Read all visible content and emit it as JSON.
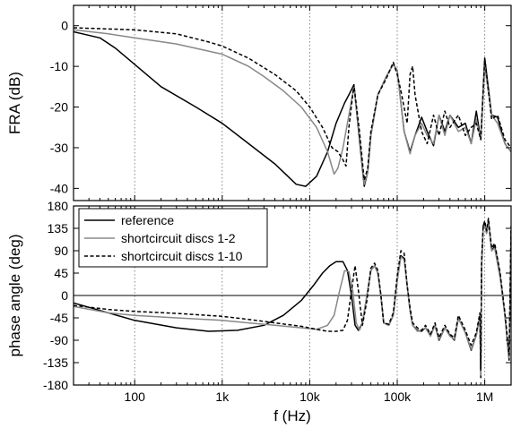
{
  "chart_data": [
    {
      "type": "line",
      "title": "",
      "ylabel": "FRA (dB)",
      "xlabel": "",
      "xscale": "log",
      "xlim": [
        20,
        2000000
      ],
      "ylim": [
        -43,
        5
      ],
      "xticks": [
        100,
        1000,
        10000,
        100000,
        1000000
      ],
      "yticks": [
        0,
        -10,
        -20,
        -30,
        -40
      ],
      "yticklabels": [
        "0",
        "-10",
        "-20",
        "-30",
        "-40"
      ],
      "vgrid": "dotted at decades",
      "series": [
        {
          "name": "reference",
          "color": "#000000",
          "dash": "solid",
          "x": [
            20,
            40,
            60,
            100,
            200,
            500,
            1000,
            2000,
            4000,
            7000,
            9000,
            12000,
            16000,
            20000,
            25000,
            28000,
            32000,
            37000,
            42000,
            46000,
            50000,
            60000,
            75000,
            90000,
            100000,
            120000,
            140000,
            160000,
            190000,
            220000,
            260000,
            300000,
            350000,
            400000,
            500000,
            600000,
            700000,
            800000,
            900000,
            1000000,
            1200000,
            1400000,
            1700000,
            2000000
          ],
          "y": [
            -1.5,
            -3,
            -5.5,
            -9.5,
            -15,
            -20,
            -24,
            -29,
            -34,
            -39,
            -39.5,
            -37,
            -31,
            -24,
            -19,
            -17,
            -14.5,
            -28,
            -39.5,
            -36,
            -27,
            -17,
            -12.5,
            -9.5,
            -11,
            -26,
            -31,
            -27,
            -22.5,
            -26,
            -29.5,
            -22,
            -26,
            -22,
            -25,
            -24,
            -29,
            -21,
            -28,
            -8,
            -22,
            -22.5,
            -29,
            -31
          ]
        },
        {
          "name": "shortcircuit discs 1-2",
          "color": "#888888",
          "dash": "solid",
          "x": [
            20,
            50,
            100,
            300,
            1000,
            2000,
            3000,
            5000,
            8000,
            12000,
            16000,
            19000,
            21000,
            24000,
            28000,
            32000,
            37000,
            42000,
            46000,
            50000,
            60000,
            75000,
            90000,
            100000,
            120000,
            140000,
            160000,
            190000,
            220000,
            260000,
            300000,
            350000,
            400000,
            500000,
            600000,
            700000,
            800000,
            900000,
            1000000,
            1200000,
            1400000,
            1700000,
            2000000
          ],
          "y": [
            -1,
            -2,
            -3,
            -4.5,
            -7,
            -10,
            -12.5,
            -16,
            -20,
            -25,
            -31,
            -36.5,
            -35,
            -30,
            -22,
            -15,
            -27,
            -39,
            -36,
            -27,
            -17,
            -12.5,
            -9.5,
            -11,
            -26,
            -31.5,
            -27,
            -24,
            -27,
            -29,
            -22,
            -27,
            -22,
            -26,
            -25,
            -29,
            -23,
            -28,
            -10,
            -22,
            -24,
            -29,
            -31
          ]
        },
        {
          "name": "shortcircuit discs 1-10",
          "color": "#000000",
          "dash": "dashed",
          "x": [
            20,
            100,
            300,
            700,
            1000,
            2000,
            4000,
            7000,
            10000,
            14000,
            18000,
            21000,
            24000,
            26000,
            28000,
            32000,
            37000,
            42000,
            46000,
            50000,
            60000,
            75000,
            90000,
            100000,
            110000,
            130000,
            140000,
            150000,
            160000,
            190000,
            220000,
            260000,
            300000,
            350000,
            400000,
            500000,
            600000,
            700000,
            800000,
            900000,
            1000000,
            1200000,
            1400000,
            1700000,
            2000000
          ],
          "y": [
            -0.5,
            -1,
            -2,
            -4,
            -5,
            -8,
            -12,
            -16,
            -20,
            -25,
            -30,
            -31,
            -33,
            -34.5,
            -25,
            -14.5,
            -26,
            -38,
            -35,
            -26,
            -17,
            -13,
            -9,
            -12,
            -16,
            -24,
            -12,
            -10,
            -17,
            -26,
            -29,
            -22,
            -27,
            -21,
            -25,
            -22,
            -27,
            -25,
            -24,
            -28,
            -8,
            -23,
            -22,
            -28,
            -30
          ]
        }
      ]
    },
    {
      "type": "line",
      "title": "",
      "ylabel": "phase angle (deg)",
      "xlabel": "f (Hz)",
      "xscale": "log",
      "xlim": [
        20,
        2000000
      ],
      "ylim": [
        -180,
        180
      ],
      "xticks": [
        100,
        1000,
        10000,
        100000,
        1000000
      ],
      "xticklabels": [
        "100",
        "1k",
        "10k",
        "100k",
        "1M"
      ],
      "yticks": [
        180,
        135,
        90,
        45,
        0,
        -45,
        -90,
        -135,
        -180
      ],
      "yticklabels": [
        "180",
        "135",
        "90",
        "45",
        "0",
        "-45",
        "-90",
        "-135",
        "-180"
      ],
      "hline": 0,
      "vgrid": "dotted at decades",
      "legend": {
        "placement": "top-left",
        "entries": [
          "reference",
          "shortcircuit discs 1-2",
          "shortcircuit discs 1-10"
        ]
      },
      "series": [
        {
          "name": "reference",
          "color": "#000000",
          "dash": "solid",
          "x": [
            20,
            40,
            100,
            300,
            700,
            1500,
            3000,
            5000,
            8000,
            11000,
            14000,
            17000,
            20000,
            24000,
            27000,
            30000,
            33000,
            36000,
            40000,
            45000,
            50000,
            55000,
            60000,
            65000,
            70000,
            80000,
            90000,
            100000,
            110000,
            120000,
            130000,
            140000,
            150000,
            170000,
            190000,
            210000,
            240000,
            270000,
            300000,
            350000,
            400000,
            450000,
            500000,
            600000,
            700000,
            800000,
            880000,
            900000,
            920000,
            960000,
            1000000,
            1050000,
            1100000,
            1200000,
            1300000,
            1500000,
            1700000,
            1900000,
            2000000
          ],
          "y": [
            -15,
            -30,
            -50,
            -65,
            -72,
            -70,
            -60,
            -40,
            -10,
            20,
            45,
            60,
            68,
            68,
            50,
            0,
            -60,
            -70,
            -55,
            0,
            50,
            60,
            45,
            0,
            -55,
            -60,
            -40,
            30,
            80,
            75,
            20,
            -30,
            -60,
            -70,
            -72,
            -65,
            -80,
            -60,
            -90,
            -65,
            -80,
            -90,
            -45,
            -75,
            -110,
            -80,
            -40,
            -165,
            60,
            140,
            145,
            125,
            150,
            90,
            100,
            40,
            -40,
            -130,
            130
          ]
        },
        {
          "name": "shortcircuit discs 1-2",
          "color": "#888888",
          "dash": "solid",
          "x": [
            20,
            50,
            100,
            300,
            1000,
            2000,
            4000,
            8000,
            12000,
            16000,
            19000,
            22000,
            25000,
            28000,
            31000,
            34000,
            37000,
            40000,
            45000,
            50000,
            55000,
            60000,
            65000,
            70000,
            80000,
            90000,
            100000,
            110000,
            120000,
            130000,
            140000,
            150000,
            170000,
            190000,
            210000,
            240000,
            270000,
            300000,
            350000,
            400000,
            450000,
            500000,
            600000,
            700000,
            800000,
            880000,
            900000,
            920000,
            960000,
            1000000,
            1050000,
            1100000,
            1200000,
            1300000,
            1500000,
            1700000,
            1900000,
            2000000
          ],
          "y": [
            -22,
            -35,
            -40,
            -45,
            -50,
            -55,
            -60,
            -65,
            -68,
            -60,
            -40,
            10,
            50,
            48,
            10,
            -55,
            -70,
            -55,
            0,
            50,
            60,
            45,
            0,
            -55,
            -60,
            -40,
            30,
            78,
            72,
            20,
            -30,
            -60,
            -72,
            -70,
            -65,
            -82,
            -60,
            -88,
            -65,
            -82,
            -88,
            -45,
            -75,
            -108,
            -80,
            -40,
            -160,
            60,
            135,
            140,
            125,
            145,
            90,
            95,
            35,
            -40,
            -125,
            125
          ]
        },
        {
          "name": "shortcircuit discs 1-10",
          "color": "#000000",
          "dash": "dashed",
          "x": [
            20,
            50,
            100,
            300,
            1000,
            2000,
            4000,
            8000,
            12000,
            16000,
            20000,
            24000,
            27000,
            30000,
            33000,
            36000,
            40000,
            45000,
            50000,
            55000,
            60000,
            65000,
            70000,
            80000,
            90000,
            100000,
            110000,
            120000,
            130000,
            140000,
            150000,
            170000,
            190000,
            210000,
            240000,
            270000,
            300000,
            350000,
            400000,
            450000,
            500000,
            600000,
            700000,
            800000,
            880000,
            900000,
            920000,
            960000,
            1000000,
            1050000,
            1100000,
            1200000,
            1300000,
            1500000,
            1700000,
            1900000,
            2000000
          ],
          "y": [
            -20,
            -28,
            -32,
            -36,
            -42,
            -48,
            -55,
            -62,
            -68,
            -72,
            -72,
            -70,
            -50,
            10,
            60,
            10,
            -60,
            -10,
            55,
            65,
            50,
            0,
            -55,
            -58,
            -35,
            40,
            90,
            85,
            20,
            -25,
            -55,
            -65,
            -70,
            -60,
            -78,
            -55,
            -85,
            -60,
            -78,
            -85,
            -40,
            -70,
            -100,
            -75,
            -35,
            -150,
            70,
            140,
            150,
            130,
            155,
            95,
            105,
            45,
            -35,
            -120,
            140
          ]
        }
      ]
    }
  ]
}
